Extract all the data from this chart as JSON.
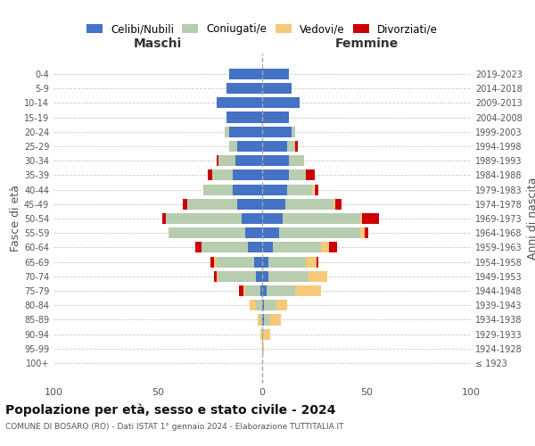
{
  "age_groups": [
    "100+",
    "95-99",
    "90-94",
    "85-89",
    "80-84",
    "75-79",
    "70-74",
    "65-69",
    "60-64",
    "55-59",
    "50-54",
    "45-49",
    "40-44",
    "35-39",
    "30-34",
    "25-29",
    "20-24",
    "15-19",
    "10-14",
    "5-9",
    "0-4"
  ],
  "birth_years": [
    "≤ 1923",
    "1924-1928",
    "1929-1933",
    "1934-1938",
    "1939-1943",
    "1944-1948",
    "1949-1953",
    "1954-1958",
    "1959-1963",
    "1964-1968",
    "1969-1973",
    "1974-1978",
    "1979-1983",
    "1984-1988",
    "1989-1993",
    "1994-1998",
    "1999-2003",
    "2004-2008",
    "2009-2013",
    "2014-2018",
    "2019-2023"
  ],
  "colors": {
    "celibi": "#4472C4",
    "coniugati": "#B8CCB0",
    "vedovi": "#F5C97A",
    "divorziati": "#CC0000"
  },
  "maschi": {
    "celibi": [
      0,
      0,
      0,
      0,
      0,
      1,
      3,
      4,
      7,
      8,
      10,
      12,
      14,
      14,
      13,
      12,
      16,
      17,
      22,
      17,
      16
    ],
    "coniugati": [
      0,
      0,
      0,
      1,
      3,
      7,
      18,
      18,
      22,
      37,
      36,
      24,
      14,
      10,
      8,
      4,
      2,
      0,
      0,
      0,
      0
    ],
    "vedovi": [
      0,
      0,
      1,
      1,
      3,
      1,
      1,
      1,
      0,
      0,
      0,
      0,
      0,
      0,
      0,
      0,
      0,
      0,
      0,
      0,
      0
    ],
    "divorziati": [
      0,
      0,
      0,
      0,
      0,
      2,
      1,
      2,
      3,
      0,
      2,
      2,
      0,
      2,
      1,
      0,
      0,
      0,
      0,
      0,
      0
    ]
  },
  "femmine": {
    "celibi": [
      0,
      0,
      0,
      1,
      1,
      2,
      3,
      3,
      5,
      8,
      10,
      11,
      12,
      13,
      13,
      12,
      14,
      13,
      18,
      14,
      13
    ],
    "coniugati": [
      0,
      0,
      1,
      3,
      6,
      14,
      19,
      18,
      23,
      39,
      37,
      23,
      12,
      8,
      7,
      4,
      2,
      0,
      0,
      0,
      0
    ],
    "vedovi": [
      0,
      1,
      3,
      5,
      5,
      12,
      9,
      5,
      4,
      2,
      1,
      1,
      1,
      0,
      0,
      0,
      0,
      0,
      0,
      0,
      0
    ],
    "divorziati": [
      0,
      0,
      0,
      0,
      0,
      0,
      0,
      1,
      4,
      2,
      8,
      3,
      2,
      4,
      0,
      1,
      0,
      0,
      0,
      0,
      0
    ]
  },
  "title": "Popolazione per età, sesso e stato civile - 2024",
  "subtitle": "COMUNE DI BOSARO (RO) - Dati ISTAT 1° gennaio 2024 - Elaborazione TUTTITALIA.IT",
  "xlabel_left": "Maschi",
  "xlabel_right": "Femmine",
  "ylabel_left": "Fasce di età",
  "ylabel_right": "Anni di nascita",
  "xlim": 100,
  "legend_labels": [
    "Celibi/Nubili",
    "Coniugati/e",
    "Vedovi/e",
    "Divorziati/e"
  ],
  "bg_color": "#FFFFFF",
  "grid_color": "#CCCCCC"
}
